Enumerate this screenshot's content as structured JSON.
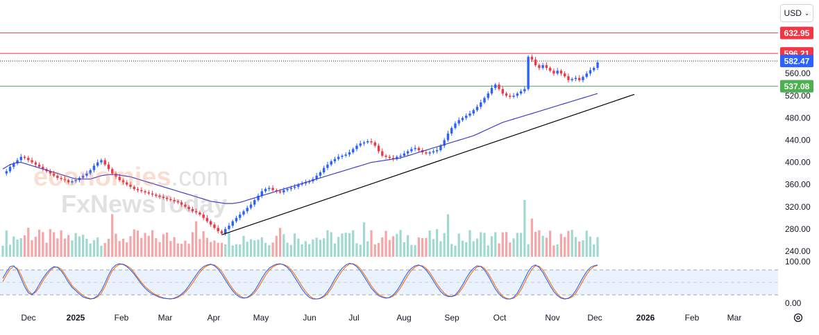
{
  "header": {
    "currency": "USD"
  },
  "watermark": {
    "line1a": "economies",
    "line1b": ".com",
    "line2": "FxNewsToday"
  },
  "chart_data": {
    "type": "candlestick",
    "price_axis": {
      "ticks": [
        "560.00",
        "520.00",
        "480.00",
        "440.00",
        "400.00",
        "360.00",
        "320.00",
        "280.00",
        "240.00"
      ],
      "range": [
        230,
        640
      ]
    },
    "x_axis": {
      "labels": [
        "Dec",
        "2025",
        "Feb",
        "Mar",
        "Apr",
        "May",
        "Jun",
        "Jul",
        "Aug",
        "Sep",
        "Oct",
        "Nov",
        "Dec",
        "2026",
        "Feb",
        "Mar"
      ]
    },
    "horizontal_levels": [
      {
        "label": "632.95",
        "value": 632.95,
        "color": "#f23645",
        "style": "solid"
      },
      {
        "label": "596.21",
        "value": 596.21,
        "color": "#f23645",
        "style": "solid"
      },
      {
        "label": "582.47",
        "value": 582.47,
        "color": "#2962ff",
        "style": "dotted"
      },
      {
        "label": "537.08",
        "value": 537.08,
        "color": "#4caf50",
        "style": "solid"
      }
    ],
    "close_series": [
      380,
      384,
      392,
      398,
      404,
      410,
      408,
      404,
      400,
      396,
      392,
      388,
      384,
      380,
      376,
      372,
      370,
      368,
      364,
      366,
      368,
      372,
      376,
      380,
      386,
      394,
      400,
      404,
      396,
      388,
      380,
      374,
      368,
      364,
      360,
      356,
      352,
      350,
      348,
      346,
      344,
      342,
      340,
      338,
      336,
      334,
      332,
      330,
      328,
      324,
      320,
      316,
      312,
      310,
      306,
      300,
      294,
      288,
      282,
      276,
      272,
      280,
      286,
      294,
      300,
      306,
      312,
      318,
      324,
      332,
      340,
      348,
      352,
      354,
      350,
      348,
      346,
      350,
      352,
      354,
      356,
      360,
      362,
      364,
      366,
      370,
      376,
      382,
      390,
      396,
      402,
      406,
      410,
      412,
      414,
      418,
      424,
      430,
      434,
      436,
      438,
      436,
      430,
      420,
      412,
      410,
      408,
      406,
      410,
      412,
      416,
      420,
      424,
      426,
      422,
      418,
      416,
      418,
      420,
      422,
      430,
      440,
      452,
      462,
      470,
      476,
      480,
      484,
      488,
      494,
      500,
      508,
      516,
      524,
      534,
      540,
      532,
      524,
      520,
      518,
      520,
      524,
      528,
      532,
      590,
      585,
      575,
      570,
      575,
      570,
      565,
      560,
      565,
      560,
      555,
      548,
      550,
      552,
      548,
      554,
      560,
      566,
      570,
      580
    ],
    "ma_series": [
      388,
      392,
      396,
      398,
      400,
      400,
      398,
      396,
      394,
      392,
      390,
      388,
      386,
      384,
      382,
      380,
      378,
      376,
      374,
      372,
      370,
      370,
      370,
      370,
      370,
      372,
      374,
      376,
      377,
      378,
      378,
      378,
      377,
      376,
      375,
      374,
      372,
      370,
      368,
      366,
      364,
      362,
      360,
      358,
      356,
      354,
      352,
      350,
      348,
      346,
      344,
      342,
      340,
      338,
      336,
      334,
      332,
      330,
      329,
      328,
      327,
      326,
      326,
      326,
      327,
      328,
      330,
      332,
      334,
      336,
      338,
      340,
      342,
      344,
      346,
      348,
      350,
      352,
      354,
      356,
      358,
      360,
      362,
      364,
      366,
      368,
      370,
      372,
      374,
      376,
      378,
      380,
      382,
      384,
      386,
      388,
      390,
      392,
      394,
      396,
      398,
      400,
      401,
      402,
      403,
      404,
      405,
      406,
      407,
      408,
      410,
      412,
      414,
      416,
      418,
      420,
      422,
      424,
      426,
      428,
      430,
      432,
      434,
      436,
      438,
      440,
      442,
      444,
      446,
      448,
      451,
      454,
      457,
      460,
      463,
      466,
      469,
      472,
      474,
      476,
      478,
      480,
      482,
      484,
      486,
      488,
      490,
      492,
      494,
      496,
      498,
      500,
      502,
      504,
      506,
      508,
      510,
      512,
      514,
      516,
      518,
      520,
      522,
      524
    ],
    "trendline": {
      "from": [
        269.8,
        0.275
      ],
      "to": [
        522.5,
        0.775
      ],
      "color": "#000000"
    },
    "oscillator": {
      "ticks": [
        "100.00",
        "0.00"
      ],
      "upper_band": 80,
      "lower_band": 20,
      "k_line": [
        60,
        75,
        88,
        90,
        80,
        60,
        40,
        25,
        20,
        30,
        45,
        60,
        72,
        82,
        88,
        86,
        78,
        65,
        50,
        38,
        30,
        22,
        15,
        12,
        10,
        12,
        18,
        30,
        48,
        68,
        84,
        92,
        95,
        93,
        88,
        80,
        70,
        58,
        46,
        36,
        28,
        22,
        18,
        14,
        12,
        11,
        10,
        12,
        16,
        22,
        30,
        42,
        55,
        68,
        80,
        88,
        92,
        94,
        90,
        82,
        70,
        56,
        42,
        30,
        20,
        14,
        12,
        14,
        20,
        30,
        44,
        60,
        74,
        84,
        90,
        94,
        95,
        92,
        86,
        76,
        62,
        48,
        34,
        22,
        14,
        10,
        10,
        12,
        18,
        28,
        42,
        58,
        72,
        84,
        92,
        96,
        94,
        88,
        78,
        64,
        50,
        36,
        26,
        18,
        14,
        12,
        14,
        20,
        30,
        44,
        60,
        74,
        84,
        90,
        92,
        88,
        80,
        68,
        54,
        40,
        28,
        20,
        16,
        16,
        20,
        30,
        44,
        60,
        74,
        84,
        90,
        88,
        80,
        66,
        50,
        34,
        22,
        14,
        10,
        10,
        14,
        24,
        40,
        58,
        76,
        88,
        92,
        86,
        74,
        58,
        42,
        28,
        18,
        12,
        10,
        12,
        18,
        30,
        46,
        62,
        76,
        86,
        90,
        92
      ],
      "d_line": [
        52,
        68,
        82,
        88,
        84,
        68,
        48,
        30,
        22,
        26,
        38,
        54,
        67,
        78,
        86,
        87,
        82,
        70,
        56,
        42,
        34,
        26,
        18,
        14,
        11,
        11,
        15,
        24,
        40,
        60,
        78,
        88,
        93,
        94,
        90,
        84,
        74,
        62,
        50,
        40,
        32,
        25,
        20,
        16,
        13,
        11,
        11,
        11,
        14,
        19,
        26,
        36,
        48,
        62,
        74,
        84,
        90,
        93,
        92,
        86,
        76,
        62,
        48,
        35,
        24,
        17,
        13,
        13,
        17,
        25,
        37,
        52,
        67,
        79,
        87,
        92,
        94,
        93,
        89,
        81,
        69,
        55,
        41,
        28,
        18,
        12,
        10,
        11,
        15,
        23,
        35,
        50,
        65,
        78,
        88,
        94,
        95,
        91,
        83,
        70,
        56,
        42,
        30,
        21,
        16,
        13,
        13,
        17,
        25,
        37,
        52,
        67,
        79,
        87,
        91,
        90,
        84,
        74,
        60,
        46,
        34,
        24,
        18,
        16,
        18,
        25,
        37,
        52,
        67,
        79,
        87,
        89,
        84,
        72,
        57,
        41,
        27,
        17,
        12,
        10,
        12,
        19,
        32,
        49,
        67,
        82,
        90,
        89,
        80,
        65,
        49,
        34,
        22,
        14,
        11,
        11,
        15,
        24,
        38,
        54,
        69,
        81,
        88,
        91
      ]
    },
    "up_color": "#2962ff",
    "down_color": "#f23645",
    "ma_color": "#3f3fc8",
    "volume_up_color": "#9fd9cf",
    "volume_down_color": "#f5a6a8"
  }
}
